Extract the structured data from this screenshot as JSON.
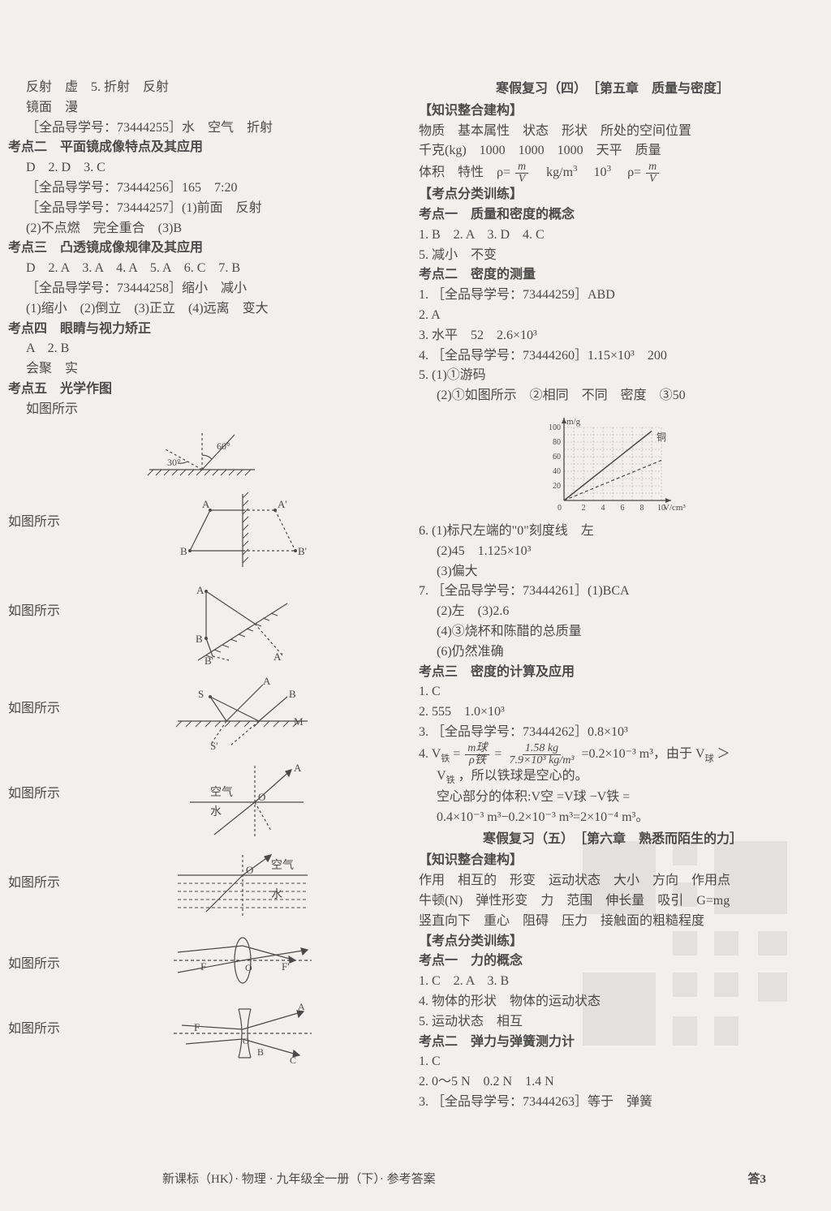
{
  "left": {
    "l1": "反射　虚　5. 折射　反射",
    "l2": "镜面　漫",
    "l3": "［全品导学号：73444255］水　空气　折射",
    "kd2_title": "考点二　平面镜成像特点及其应用",
    "kd2_l1": "D　2. D　3. C",
    "kd2_l2": "［全品导学号：73444256］165　7:20",
    "kd2_l3": "［全品导学号：73444257］(1)前面　反射",
    "kd2_l4": "(2)不点燃　完全重合　(3)B",
    "kd3_title": "考点三　凸透镜成像规律及其应用",
    "kd3_l1": "D　2. A　3. A　4. A　5. A　6. C　7. B",
    "kd3_l2": "［全品导学号：73444258］缩小　减小",
    "kd3_l3": "(1)缩小　(2)倒立　(3)正立　(4)远离　变大",
    "kd4_title": "考点四　眼睛与视力矫正",
    "kd4_l1": "A　2. B",
    "kd4_l2": "会聚　实",
    "kd5_title": "考点五　光学作图",
    "kd5_l1": "如图所示",
    "fig_label": "如图所示",
    "fig1_angle1": "60°",
    "fig1_angle2": "30°",
    "fig2_A": "A",
    "fig2_Ap": "A'",
    "fig2_B": "B",
    "fig2_Bp": "B'",
    "fig3_A": "A",
    "fig3_B": "B",
    "fig3_Ap": "A'",
    "fig3_Bp": "B'",
    "fig4_A": "A",
    "fig4_B": "B",
    "fig4_S": "S",
    "fig4_Sp": "S'",
    "fig4_M": "M",
    "fig5_air": "空气",
    "fig5_water": "水",
    "fig5_A": "A",
    "fig5_O": "O",
    "fig6_air": "空气",
    "fig6_water": "水",
    "fig6_O": "O",
    "fig7_F": "F",
    "fig7_Fp": "F'",
    "fig7_O": "O",
    "fig8_F": "F",
    "fig8_A": "A",
    "fig8_B": "B",
    "fig8_C": "C",
    "fig8_O": "O"
  },
  "right": {
    "rev4_title": "寒假复习（四）　［第五章　质量与密度］",
    "kn_title": "【知识整合建构】",
    "kn_l1": "物质　基本属性　状态　形状　所处的空间位置",
    "kn_l2": "千克(kg)　1000　1000　1000　天平　质量",
    "kn_l3_a": "体积　特性　ρ=",
    "kn_l3_b": "　kg/m",
    "kn_l3_c": "　10",
    "kn_l3_d": "　ρ=",
    "frac_m": "m",
    "frac_V": "V",
    "tr_title": "【考点分类训练】",
    "kd1_title": "考点一　质量和密度的概念",
    "kd1_l1": "1. B　2. A　3. D　4. C",
    "kd1_l2": "5. 减小　不变",
    "kd2_title": "考点二　密度的测量",
    "kd2_l1": "1. ［全品导学号：73444259］ABD",
    "kd2_l2": "2. A",
    "kd2_l3": "3. 水平　52　2.6×10³",
    "kd2_l4": "4. ［全品导学号：73444260］1.15×10³　200",
    "kd2_l5": "5. (1)①游码",
    "kd2_l6": "(2)①如图所示　②相同　不同　密度　③50",
    "chart": {
      "x_max": 10,
      "y_max": 100,
      "x_ticks": [
        "2",
        "4",
        "6",
        "8",
        "10"
      ],
      "y_ticks": [
        "20",
        "40",
        "60",
        "80",
        "100"
      ],
      "x_label": "V/cm³",
      "y_label": "m/g",
      "line_label": "铜",
      "grid_color": "#b0aca5",
      "axis_color": "#4a4a4a",
      "line_color": "#4a4a4a",
      "width": 170,
      "height": 110
    },
    "kd2_l7": "6. (1)标尺左端的\"0\"刻度线　左",
    "kd2_l8": "(2)45　1.125×10³",
    "kd2_l9": "(3)偏大",
    "kd2_l10": "7. ［全品导学号：73444261］(1)BCA",
    "kd2_l11": "(2)左　(3)2.6",
    "kd2_l12": "(4)③烧杯和陈醋的总质量",
    "kd2_l13": "(6)仍然准确",
    "kd3_title": "考点三　密度的计算及应用",
    "kd3_l1": "1. C",
    "kd3_l2": "2. 555　1.0×10³",
    "kd3_l3": "3. ［全品导学号：73444262］0.8×10³",
    "kd3_l4_a": "4. V",
    "kd3_l4_sub1": "铁",
    "kd3_l4_b": "=",
    "kd3_frac1_num": "m球",
    "kd3_frac1_den": "ρ铁",
    "kd3_l4_c": "=",
    "kd3_frac2_num": "1.58 kg",
    "kd3_frac2_den": "7.9×10³ kg/m³",
    "kd3_l4_d": "=0.2×10⁻³ m³，由于 V",
    "kd3_l4_sub2": "球",
    "kd3_l4_e": "＞",
    "kd3_l5_a": "V",
    "kd3_l5_sub": "铁",
    "kd3_l5_b": "，所以铁球是空心的。",
    "kd3_l6": "空心部分的体积:V空 =V球 −V铁 =",
    "kd3_l7": "0.4×10⁻³ m³−0.2×10⁻³ m³=2×10⁻⁴ m³。",
    "rev5_title": "寒假复习（五）　［第六章　熟悉而陌生的力］",
    "kn5_title": "【知识整合建构】",
    "kn5_l1": "作用　相互的　形变　运动状态　大小　方向　作用点",
    "kn5_l2": "牛顿(N)　弹性形变　力　范围　伸长量　吸引　G=mg",
    "kn5_l3": "竖直向下　重心　阻碍　压力　接触面的粗糙程度",
    "tr5_title": "【考点分类训练】",
    "kd5_1_title": "考点一　力的概念",
    "kd5_1_l1": "1. C　2. A　3. B",
    "kd5_1_l2": "4. 物体的形状　物体的运动状态",
    "kd5_1_l3": "5. 运动状态　相互",
    "kd5_2_title": "考点二　弹力与弹簧测力计",
    "kd5_2_l1": "1. C",
    "kd5_2_l2": "2. 0～5 N　0.2 N　1.4 N",
    "kd5_2_l3": "3. ［全品导学号：73444263］等于　弹簧"
  },
  "footer": {
    "left": "新课标（HK）· 物理 · 九年级全一册（下）· 参考答案",
    "right": "答3"
  }
}
